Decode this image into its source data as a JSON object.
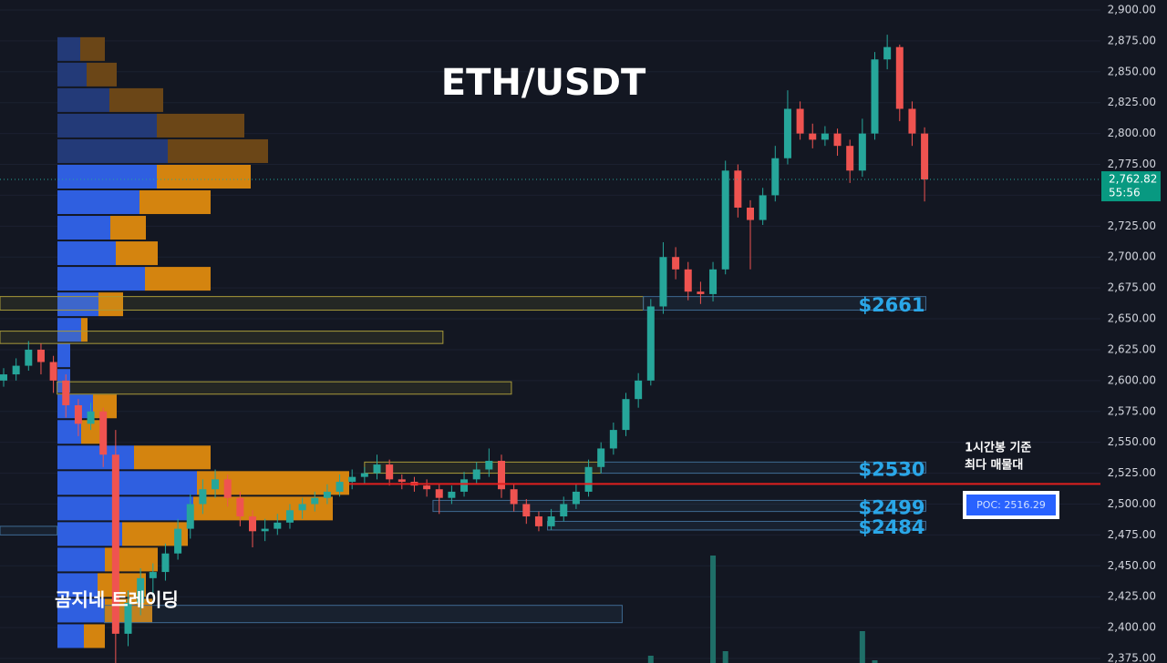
{
  "chart_data": {
    "type": "candlestick",
    "title": "ETH/USDT",
    "watermark": "곰지네 트레이딩",
    "annotation": [
      "1시간봉 기준",
      "최다 매물대"
    ],
    "up_color": "#26a69a",
    "down_color": "#ef5350",
    "ylim": [
      2375,
      2900
    ],
    "yticks": [
      {
        "value": 2375,
        "label": "2,375.00"
      },
      {
        "value": 2400,
        "label": "2,400.00"
      },
      {
        "value": 2425,
        "label": "2,425.00"
      },
      {
        "value": 2450,
        "label": "2,450.00"
      },
      {
        "value": 2475,
        "label": "2,475.00"
      },
      {
        "value": 2500,
        "label": "2,500.00"
      },
      {
        "value": 2525,
        "label": "2,525.00"
      },
      {
        "value": 2550,
        "label": "2,550.00"
      },
      {
        "value": 2575,
        "label": "2,575.00"
      },
      {
        "value": 2600,
        "label": "2,600.00"
      },
      {
        "value": 2625,
        "label": "2,625.00"
      },
      {
        "value": 2650,
        "label": "2,650.00"
      },
      {
        "value": 2675,
        "label": "2,675.00"
      },
      {
        "value": 2700,
        "label": "2,700.00"
      },
      {
        "value": 2725,
        "label": "2,725.00"
      },
      {
        "value": 2750,
        "label": "2,750.00"
      },
      {
        "value": 2775,
        "label": "2,775.00"
      },
      {
        "value": 2800,
        "label": "2,800.00"
      },
      {
        "value": 2825,
        "label": "2,825.00"
      },
      {
        "value": 2850,
        "label": "2,850.00"
      },
      {
        "value": 2875,
        "label": "2,875.00"
      },
      {
        "value": 2900,
        "label": "2,900.00"
      }
    ],
    "candles": [
      [
        2600,
        2610,
        2595,
        2605
      ],
      [
        2605,
        2618,
        2600,
        2612
      ],
      [
        2612,
        2632,
        2608,
        2625
      ],
      [
        2625,
        2630,
        2605,
        2615
      ],
      [
        2615,
        2620,
        2590,
        2600
      ],
      [
        2600,
        2605,
        2570,
        2580
      ],
      [
        2580,
        2585,
        2555,
        2565
      ],
      [
        2565,
        2582,
        2560,
        2575
      ],
      [
        2575,
        2578,
        2530,
        2540
      ],
      [
        2540,
        2560,
        2370,
        2395
      ],
      [
        2395,
        2430,
        2385,
        2420
      ],
      [
        2420,
        2448,
        2410,
        2440
      ],
      [
        2440,
        2452,
        2425,
        2445
      ],
      [
        2445,
        2468,
        2438,
        2460
      ],
      [
        2460,
        2488,
        2455,
        2480
      ],
      [
        2480,
        2508,
        2472,
        2500
      ],
      [
        2500,
        2520,
        2492,
        2512
      ],
      [
        2512,
        2528,
        2505,
        2520
      ],
      [
        2520,
        2524,
        2498,
        2505
      ],
      [
        2505,
        2510,
        2482,
        2490
      ],
      [
        2490,
        2495,
        2465,
        2478
      ],
      [
        2478,
        2488,
        2470,
        2480
      ],
      [
        2480,
        2492,
        2475,
        2485
      ],
      [
        2485,
        2500,
        2480,
        2495
      ],
      [
        2495,
        2505,
        2488,
        2500
      ],
      [
        2500,
        2510,
        2494,
        2505
      ],
      [
        2505,
        2516,
        2500,
        2510
      ],
      [
        2510,
        2524,
        2506,
        2518
      ],
      [
        2518,
        2528,
        2512,
        2522
      ],
      [
        2522,
        2530,
        2516,
        2525
      ],
      [
        2525,
        2540,
        2520,
        2532
      ],
      [
        2532,
        2536,
        2515,
        2520
      ],
      [
        2520,
        2524,
        2512,
        2518
      ],
      [
        2518,
        2522,
        2510,
        2515
      ],
      [
        2515,
        2520,
        2506,
        2512
      ],
      [
        2512,
        2516,
        2492,
        2505
      ],
      [
        2505,
        2515,
        2500,
        2510
      ],
      [
        2510,
        2526,
        2506,
        2520
      ],
      [
        2520,
        2534,
        2516,
        2528
      ],
      [
        2528,
        2545,
        2522,
        2535
      ],
      [
        2535,
        2540,
        2505,
        2512
      ],
      [
        2512,
        2516,
        2494,
        2500
      ],
      [
        2500,
        2504,
        2484,
        2490
      ],
      [
        2490,
        2494,
        2478,
        2482
      ],
      [
        2482,
        2496,
        2479,
        2490
      ],
      [
        2490,
        2506,
        2486,
        2500
      ],
      [
        2500,
        2516,
        2496,
        2510
      ],
      [
        2510,
        2536,
        2506,
        2530
      ],
      [
        2530,
        2550,
        2525,
        2545
      ],
      [
        2545,
        2566,
        2540,
        2560
      ],
      [
        2560,
        2590,
        2555,
        2585
      ],
      [
        2585,
        2606,
        2578,
        2600
      ],
      [
        2600,
        2666,
        2596,
        2660
      ],
      [
        2660,
        2712,
        2654,
        2700
      ],
      [
        2700,
        2708,
        2682,
        2690
      ],
      [
        2690,
        2696,
        2665,
        2672
      ],
      [
        2672,
        2680,
        2662,
        2670
      ],
      [
        2670,
        2696,
        2664,
        2690
      ],
      [
        2690,
        2778,
        2686,
        2770
      ],
      [
        2770,
        2775,
        2732,
        2740
      ],
      [
        2740,
        2746,
        2690,
        2730
      ],
      [
        2730,
        2756,
        2726,
        2750
      ],
      [
        2750,
        2790,
        2745,
        2780
      ],
      [
        2780,
        2835,
        2775,
        2820
      ],
      [
        2820,
        2826,
        2795,
        2800
      ],
      [
        2800,
        2808,
        2788,
        2795
      ],
      [
        2795,
        2806,
        2790,
        2800
      ],
      [
        2800,
        2804,
        2782,
        2790
      ],
      [
        2790,
        2795,
        2760,
        2770
      ],
      [
        2770,
        2812,
        2765,
        2800
      ],
      [
        2800,
        2866,
        2795,
        2860
      ],
      [
        2860,
        2880,
        2852,
        2870
      ],
      [
        2870,
        2872,
        2810,
        2820
      ],
      [
        2820,
        2826,
        2790,
        2800
      ],
      [
        2800,
        2805,
        2745,
        2762.82
      ]
    ],
    "volume": [
      {
        "candle": 52,
        "value": 8
      },
      {
        "candle": 57,
        "value": 118
      },
      {
        "candle": 58,
        "value": 13
      },
      {
        "candle": 69,
        "value": 35
      },
      {
        "candle": 70,
        "value": 3
      }
    ],
    "profile": {
      "price_range": [
        2382,
        2878
      ],
      "buy": [
        25,
        32,
        57,
        109,
        121,
        109,
        90,
        58,
        64,
        96,
        45,
        26,
        14,
        14,
        39,
        26,
        84,
        153,
        149,
        71,
        52,
        44,
        52,
        29
      ],
      "sell": [
        27,
        33,
        59,
        96,
        110,
        103,
        78,
        39,
        46,
        72,
        27,
        7,
        0,
        0,
        26,
        21,
        84,
        167,
        153,
        72,
        58,
        53,
        52,
        23
      ]
    },
    "zones": [
      {
        "low": 2657,
        "high": 2668,
        "from": -0.3,
        "to": 51.4,
        "color": "#a89a3a"
      },
      {
        "low": 2630,
        "high": 2640,
        "from": -0.3,
        "to": 35.3,
        "color": "#a89a3a"
      },
      {
        "low": 2589,
        "high": 2599,
        "from": 4.3,
        "to": 40.8,
        "color": "#a89a3a"
      },
      {
        "low": 2525,
        "high": 2534,
        "from": 29,
        "to": 48,
        "color": "#a89a3a"
      },
      {
        "low": 2475,
        "high": 2482,
        "from": -0.3,
        "to": 4.3,
        "color": "#3e6a92"
      },
      {
        "low": 2404,
        "high": 2418,
        "from": 8.1,
        "to": 49.7,
        "color": "#3e6a92"
      },
      {
        "low": 2657,
        "high": 2668,
        "from": 51.4,
        "to": 74.1,
        "color": "#3e6a92",
        "label": "$2661"
      },
      {
        "low": 2525,
        "high": 2534,
        "from": 48,
        "to": 74.1,
        "color": "#3e6a92",
        "label": "$2530"
      },
      {
        "low": 2494,
        "high": 2503,
        "from": 34.5,
        "to": 74.1,
        "color": "#3e6a92",
        "label": "$2499"
      },
      {
        "low": 2479,
        "high": 2486,
        "from": 43.7,
        "to": 74.1,
        "color": "#3e6a92",
        "label": "$2484"
      }
    ],
    "poc": {
      "value": 2516.29,
      "label": "POC: 2516.29"
    },
    "last_price": {
      "value": 2762.82,
      "label": "2,762.82"
    },
    "countdown": "55:56"
  }
}
